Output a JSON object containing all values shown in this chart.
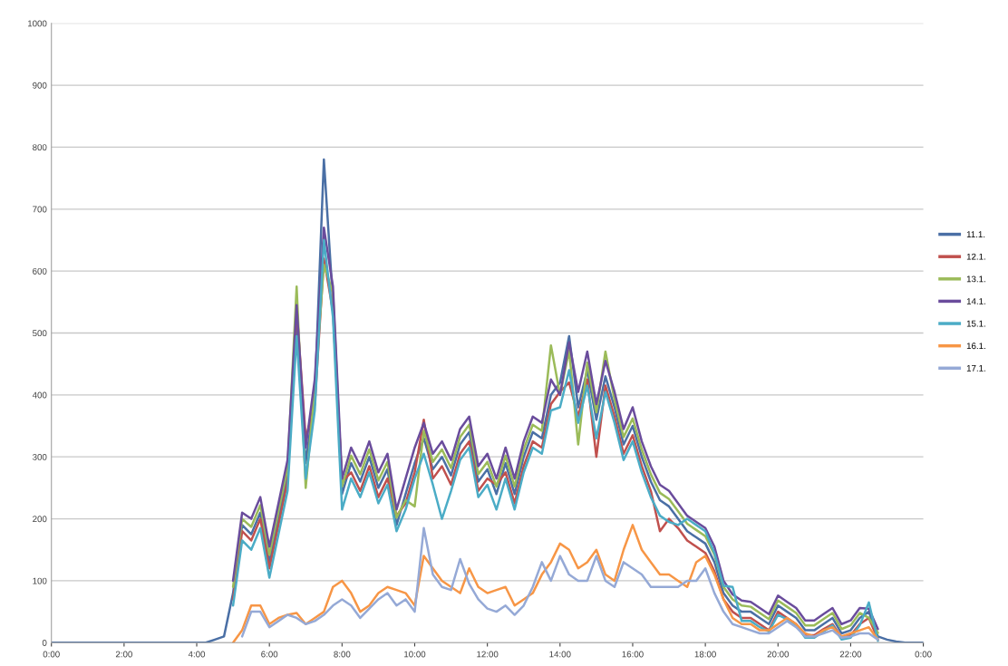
{
  "chart_data": {
    "type": "line",
    "x": [
      0,
      4,
      4.25,
      4.5,
      4.75,
      5,
      5.25,
      5.5,
      5.75,
      6,
      6.25,
      6.5,
      6.75,
      7,
      7.25,
      7.5,
      7.75,
      8,
      8.25,
      8.5,
      8.75,
      9,
      9.25,
      9.5,
      9.75,
      10,
      10.25,
      10.5,
      10.75,
      11,
      11.25,
      11.5,
      11.75,
      12,
      12.25,
      12.5,
      12.75,
      13,
      13.25,
      13.5,
      13.75,
      14,
      14.25,
      14.5,
      14.75,
      15,
      15.25,
      15.5,
      15.75,
      16,
      16.25,
      16.5,
      16.75,
      17,
      17.25,
      17.5,
      17.75,
      18,
      18.25,
      18.5,
      18.75,
      19,
      19.25,
      19.5,
      19.75,
      20,
      20.25,
      20.5,
      20.75,
      21,
      21.25,
      21.5,
      21.75,
      22,
      22.25,
      22.5,
      22.75,
      23,
      23.25,
      23.5,
      24
    ],
    "series": [
      {
        "name": "11.1.",
        "color": "#4a6fa5",
        "values": [
          0,
          0,
          0,
          5,
          10,
          80,
          190,
          175,
          210,
          130,
          200,
          270,
          520,
          290,
          400,
          780,
          550,
          240,
          290,
          260,
          300,
          250,
          280,
          190,
          240,
          290,
          330,
          280,
          300,
          270,
          320,
          340,
          260,
          280,
          240,
          290,
          240,
          300,
          340,
          330,
          400,
          420,
          495,
          380,
          440,
          360,
          430,
          380,
          320,
          350,
          300,
          260,
          230,
          220,
          200,
          180,
          170,
          160,
          130,
          80,
          60,
          50,
          50,
          40,
          30,
          60,
          50,
          40,
          20,
          20,
          30,
          40,
          15,
          20,
          40,
          50,
          10,
          5,
          2,
          0,
          0
        ]
      },
      {
        "name": "12.1.",
        "color": "#c0504d",
        "values": [
          null,
          null,
          null,
          null,
          null,
          70,
          180,
          165,
          200,
          120,
          190,
          260,
          540,
          330,
          385,
          620,
          535,
          260,
          275,
          245,
          285,
          235,
          265,
          205,
          225,
          275,
          360,
          265,
          285,
          255,
          305,
          325,
          245,
          265,
          255,
          275,
          225,
          285,
          325,
          315,
          385,
          405,
          420,
          365,
          425,
          300,
          415,
          365,
          305,
          335,
          285,
          245,
          180,
          200,
          185,
          165,
          155,
          145,
          115,
          70,
          50,
          40,
          40,
          30,
          20,
          50,
          40,
          30,
          12,
          12,
          22,
          30,
          8,
          12,
          30,
          40,
          5,
          null,
          null,
          null,
          null
        ]
      },
      {
        "name": "13.1.",
        "color": "#9bbb59",
        "values": [
          null,
          null,
          null,
          null,
          null,
          90,
          200,
          187,
          222,
          142,
          212,
          282,
          575,
          250,
          412,
          610,
          565,
          252,
          302,
          272,
          312,
          262,
          292,
          202,
          230,
          220,
          342,
          292,
          312,
          282,
          332,
          352,
          272,
          292,
          252,
          302,
          252,
          312,
          352,
          342,
          480,
          400,
          472,
          320,
          452,
          372,
          470,
          392,
          332,
          362,
          312,
          272,
          242,
          232,
          212,
          192,
          182,
          172,
          142,
          90,
          70,
          60,
          58,
          48,
          38,
          68,
          58,
          48,
          28,
          28,
          38,
          48,
          22,
          28,
          48,
          40,
          16,
          null,
          null,
          null,
          null
        ]
      },
      {
        "name": "14.1.",
        "color": "#6a4c9c",
        "values": [
          null,
          null,
          null,
          null,
          null,
          100,
          210,
          200,
          235,
          155,
          225,
          295,
          545,
          315,
          425,
          670,
          575,
          265,
          315,
          285,
          325,
          275,
          305,
          215,
          265,
          315,
          355,
          305,
          325,
          295,
          345,
          365,
          285,
          305,
          265,
          315,
          265,
          325,
          365,
          355,
          425,
          400,
          485,
          405,
          470,
          385,
          455,
          405,
          345,
          380,
          325,
          285,
          255,
          245,
          225,
          205,
          195,
          185,
          155,
          100,
          78,
          68,
          66,
          56,
          46,
          76,
          66,
          56,
          36,
          36,
          46,
          56,
          30,
          36,
          56,
          55,
          22,
          null,
          null,
          null,
          null
        ]
      },
      {
        "name": "15.1.",
        "color": "#4bacc6",
        "values": [
          null,
          null,
          null,
          null,
          null,
          60,
          165,
          150,
          185,
          105,
          175,
          245,
          495,
          265,
          375,
          650,
          525,
          215,
          265,
          235,
          275,
          225,
          255,
          180,
          215,
          265,
          305,
          255,
          200,
          245,
          295,
          315,
          235,
          255,
          215,
          265,
          215,
          275,
          315,
          305,
          375,
          380,
          440,
          355,
          415,
          330,
          405,
          355,
          295,
          325,
          275,
          235,
          205,
          195,
          190,
          200,
          190,
          180,
          145,
          92,
          90,
          35,
          35,
          25,
          18,
          45,
          38,
          28,
          8,
          8,
          18,
          28,
          5,
          8,
          28,
          65,
          3,
          null,
          null,
          null,
          null
        ]
      },
      {
        "name": "16.1.",
        "color": "#f79646",
        "values": [
          null,
          null,
          null,
          null,
          null,
          0,
          20,
          60,
          60,
          30,
          40,
          45,
          48,
          30,
          40,
          50,
          90,
          100,
          80,
          50,
          60,
          80,
          90,
          85,
          80,
          60,
          140,
          120,
          100,
          90,
          80,
          120,
          90,
          80,
          85,
          90,
          60,
          70,
          80,
          110,
          130,
          160,
          150,
          120,
          130,
          150,
          110,
          100,
          150,
          190,
          150,
          130,
          110,
          110,
          100,
          90,
          130,
          140,
          110,
          70,
          40,
          30,
          30,
          20,
          20,
          30,
          40,
          30,
          15,
          10,
          20,
          25,
          10,
          15,
          20,
          25,
          5,
          null,
          null,
          null,
          null
        ]
      },
      {
        "name": "17.1.",
        "color": "#95a9d6",
        "values": [
          null,
          null,
          null,
          null,
          null,
          null,
          10,
          50,
          50,
          25,
          35,
          45,
          40,
          30,
          35,
          45,
          60,
          70,
          60,
          40,
          55,
          70,
          80,
          60,
          70,
          50,
          185,
          110,
          90,
          85,
          135,
          95,
          70,
          55,
          50,
          60,
          45,
          60,
          90,
          130,
          100,
          140,
          110,
          100,
          100,
          140,
          100,
          90,
          130,
          120,
          110,
          90,
          90,
          90,
          90,
          100,
          100,
          120,
          80,
          50,
          30,
          25,
          20,
          15,
          15,
          25,
          35,
          25,
          10,
          10,
          15,
          20,
          8,
          10,
          15,
          15,
          5,
          null,
          null,
          null,
          null
        ]
      }
    ],
    "xlim": [
      0,
      24
    ],
    "xticks": [
      {
        "value": 0,
        "label": "0:00"
      },
      {
        "value": 2,
        "label": "2:00"
      },
      {
        "value": 4,
        "label": "4:00"
      },
      {
        "value": 6,
        "label": "6:00"
      },
      {
        "value": 8,
        "label": "8:00"
      },
      {
        "value": 10,
        "label": "10:00"
      },
      {
        "value": 12,
        "label": "12:00"
      },
      {
        "value": 14,
        "label": "14:00"
      },
      {
        "value": 16,
        "label": "16:00"
      },
      {
        "value": 18,
        "label": "18:00"
      },
      {
        "value": 20,
        "label": "20:00"
      },
      {
        "value": 22,
        "label": "22:00"
      },
      {
        "value": 24,
        "label": "0:00"
      }
    ],
    "ylim": [
      0,
      1000
    ],
    "yticks": [
      0,
      100,
      200,
      300,
      400,
      500,
      600,
      700,
      800,
      900,
      1000
    ],
    "grid": "y",
    "legend": "right"
  }
}
